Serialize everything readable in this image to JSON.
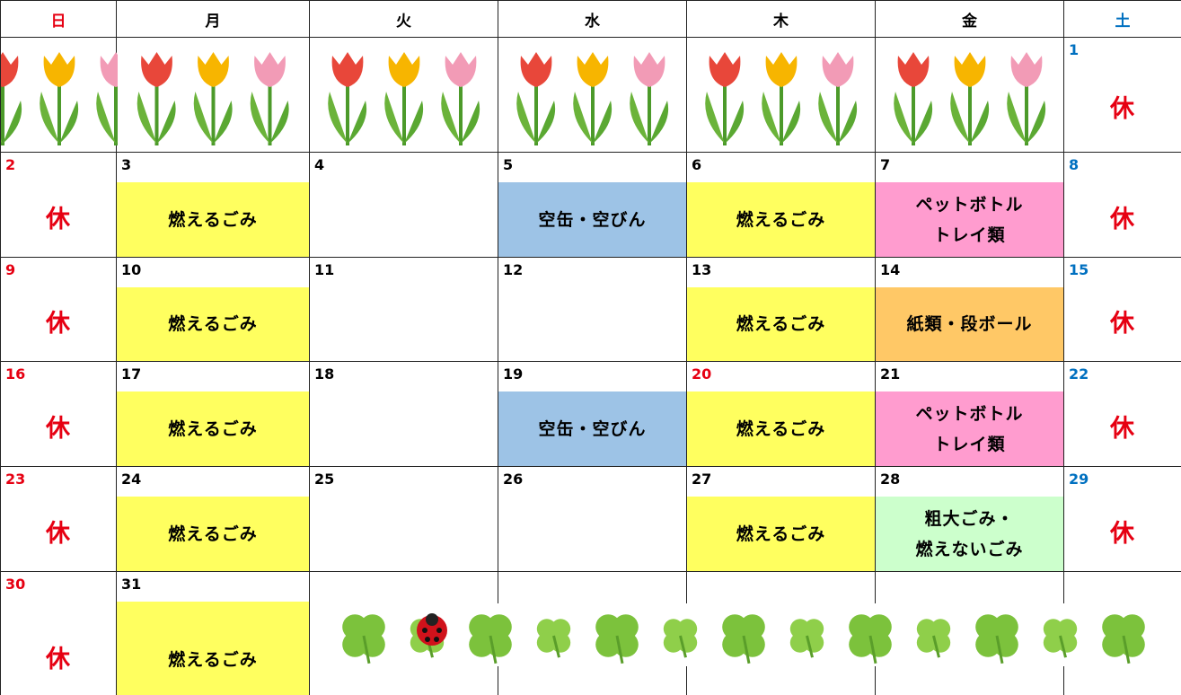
{
  "weekdays": [
    {
      "text": "日",
      "color": "#e60012"
    },
    {
      "text": "月",
      "color": "#000000"
    },
    {
      "text": "火",
      "color": "#000000"
    },
    {
      "text": "水",
      "color": "#000000"
    },
    {
      "text": "木",
      "color": "#000000"
    },
    {
      "text": "金",
      "color": "#000000"
    },
    {
      "text": "土",
      "color": "#0070c0"
    }
  ],
  "weeks": [
    [
      null,
      null,
      null,
      null,
      null,
      null,
      {
        "day": 1,
        "day_color": "#0070c0",
        "note": [
          "休"
        ],
        "holiday": true
      }
    ],
    [
      {
        "day": 2,
        "day_color": "#e60012",
        "note": [
          "休"
        ],
        "holiday": true
      },
      {
        "day": 3,
        "note": [
          "燃えるごみ"
        ],
        "fill": "#ffff5f"
      },
      {
        "day": 4
      },
      {
        "day": 5,
        "note": [
          "空缶・空びん"
        ],
        "fill": "#9dc3e6"
      },
      {
        "day": 6,
        "note": [
          "燃えるごみ"
        ],
        "fill": "#ffff5f"
      },
      {
        "day": 7,
        "note": [
          "ペットボトル",
          "トレイ類"
        ],
        "fill": "#ff9ccf"
      },
      {
        "day": 8,
        "day_color": "#0070c0",
        "note": [
          "休"
        ],
        "holiday": true
      }
    ],
    [
      {
        "day": 9,
        "day_color": "#e60012",
        "note": [
          "休"
        ],
        "holiday": true
      },
      {
        "day": 10,
        "note": [
          "燃えるごみ"
        ],
        "fill": "#ffff5f"
      },
      {
        "day": 11
      },
      {
        "day": 12
      },
      {
        "day": 13,
        "note": [
          "燃えるごみ"
        ],
        "fill": "#ffff5f"
      },
      {
        "day": 14,
        "note": [
          "紙類・段ボール"
        ],
        "fill": "#ffc866"
      },
      {
        "day": 15,
        "day_color": "#0070c0",
        "note": [
          "休"
        ],
        "holiday": true
      }
    ],
    [
      {
        "day": 16,
        "day_color": "#e60012",
        "note": [
          "休"
        ],
        "holiday": true
      },
      {
        "day": 17,
        "note": [
          "燃えるごみ"
        ],
        "fill": "#ffff5f"
      },
      {
        "day": 18
      },
      {
        "day": 19,
        "note": [
          "空缶・空びん"
        ],
        "fill": "#9dc3e6"
      },
      {
        "day": 20,
        "day_color": "#e60012",
        "note": [
          "燃えるごみ"
        ],
        "fill": "#ffff5f"
      },
      {
        "day": 21,
        "note": [
          "ペットボトル",
          "トレイ類"
        ],
        "fill": "#ff9ccf"
      },
      {
        "day": 22,
        "day_color": "#0070c0",
        "note": [
          "休"
        ],
        "holiday": true
      }
    ],
    [
      {
        "day": 23,
        "day_color": "#e60012",
        "note": [
          "休"
        ],
        "holiday": true
      },
      {
        "day": 24,
        "note": [
          "燃えるごみ"
        ],
        "fill": "#ffff5f"
      },
      {
        "day": 25
      },
      {
        "day": 26
      },
      {
        "day": 27,
        "note": [
          "燃えるごみ"
        ],
        "fill": "#ffff5f"
      },
      {
        "day": 28,
        "note": [
          "粗大ごみ・",
          "燃えないごみ"
        ],
        "fill": "#ccffcc"
      },
      {
        "day": 29,
        "day_color": "#0070c0",
        "note": [
          "休"
        ],
        "holiday": true
      }
    ],
    [
      {
        "day": 30,
        "day_color": "#e60012",
        "note": [
          "休"
        ],
        "holiday": true
      },
      {
        "day": 31,
        "note": [
          "燃えるごみ"
        ],
        "fill": "#ffff5f"
      },
      null,
      null,
      null,
      null,
      null
    ]
  ]
}
